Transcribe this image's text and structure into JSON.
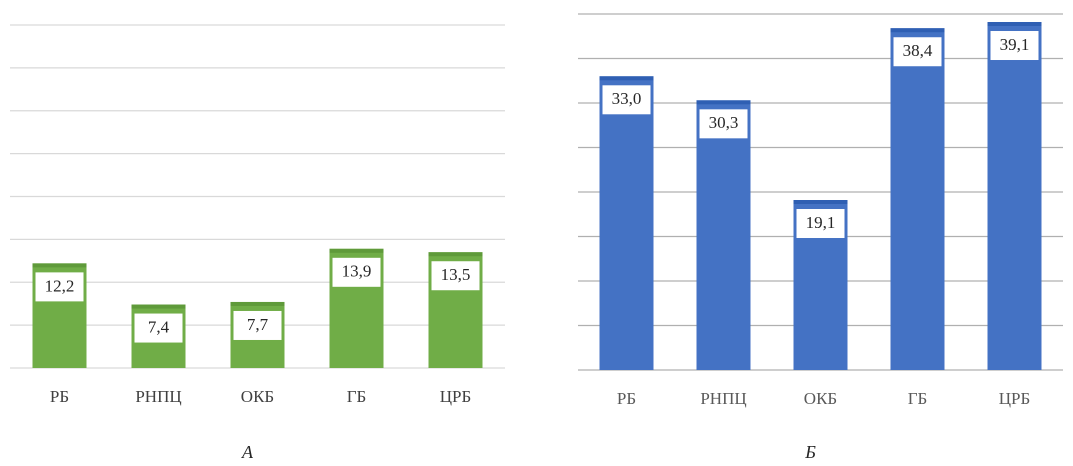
{
  "chart_data": [
    {
      "type": "bar",
      "caption": "А",
      "categories": [
        "РБ",
        "РНПЦ",
        "ОКБ",
        "ГБ",
        "ЦРБ"
      ],
      "values": [
        12.2,
        7.4,
        7.7,
        13.9,
        13.5
      ],
      "value_labels": [
        "12,2",
        "7,4",
        "7,7",
        "13,9",
        "13,5"
      ],
      "color": "#70ad47",
      "ylim": [
        0,
        40
      ],
      "yticks": [
        0,
        5,
        10,
        15,
        20,
        25,
        30,
        35,
        40
      ],
      "grid": true
    },
    {
      "type": "bar",
      "caption": "Б",
      "categories": [
        "РБ",
        "РНПЦ",
        "ОКБ",
        "ГБ",
        "ЦРБ"
      ],
      "values": [
        33.0,
        30.3,
        19.1,
        38.4,
        39.1
      ],
      "value_labels": [
        "33,0",
        "30,3",
        "19,1",
        "38,4",
        "39,1"
      ],
      "color": "#4472c4",
      "ylim": [
        0,
        40
      ],
      "yticks": [
        0,
        5,
        10,
        15,
        20,
        25,
        30,
        35,
        40
      ],
      "grid": true
    }
  ]
}
